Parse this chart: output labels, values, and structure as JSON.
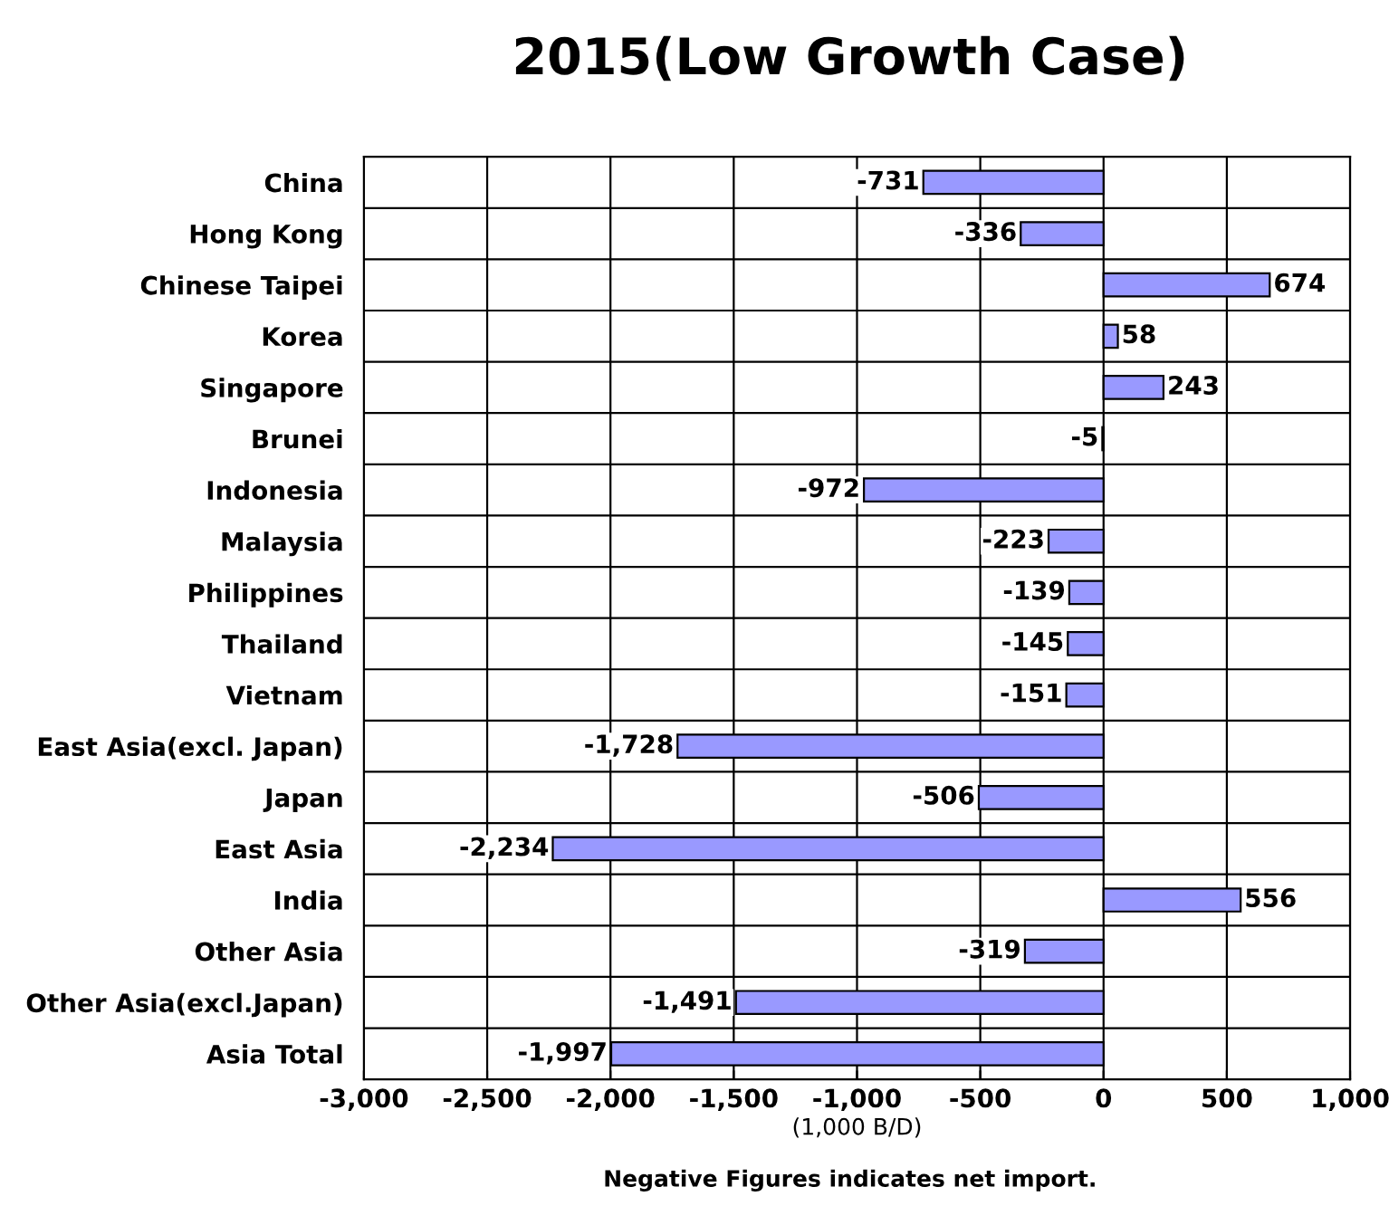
{
  "chart_data": {
    "type": "bar",
    "orientation": "horizontal",
    "title": "2015(Low Growth Case)",
    "xlabel": "(1,000 B/D)",
    "categories": [
      "China",
      "Hong Kong",
      "Chinese Taipei",
      "Korea",
      "Singapore",
      "Brunei",
      "Indonesia",
      "Malaysia",
      "Philippines",
      "Thailand",
      "Vietnam",
      "East Asia(excl. Japan)",
      "Japan",
      "East Asia",
      "India",
      "Other Asia",
      "Other Asia(excl.Japan)",
      "Asia Total"
    ],
    "values": [
      -731,
      -336,
      674,
      58,
      243,
      -5,
      -972,
      -223,
      -139,
      -145,
      -151,
      -1728,
      -506,
      -2234,
      556,
      -319,
      -1491,
      -1997
    ],
    "value_labels": [
      "-731",
      "-336",
      "674",
      "58",
      "243",
      "-5",
      "-972",
      "-223",
      "-139",
      "-145",
      "-151",
      "-1,728",
      "-506",
      "-2,234",
      "556",
      "-319",
      "-1,491",
      "-1,997"
    ],
    "color": "#9999ff",
    "xlim": [
      -3000,
      1000
    ],
    "xticks": [
      {
        "value": -3000,
        "label": "-3,000"
      },
      {
        "value": -2500,
        "label": "-2,500"
      },
      {
        "value": -2000,
        "label": "-2,000"
      },
      {
        "value": -1500,
        "label": "-1,500"
      },
      {
        "value": -1000,
        "label": "-1,000"
      },
      {
        "value": -500,
        "label": "-500"
      },
      0,
      500,
      {
        "value": 1000,
        "label": "1,000"
      }
    ],
    "grid": true,
    "legend": false,
    "annotations": [
      "Negative Figures indicates net import."
    ]
  }
}
